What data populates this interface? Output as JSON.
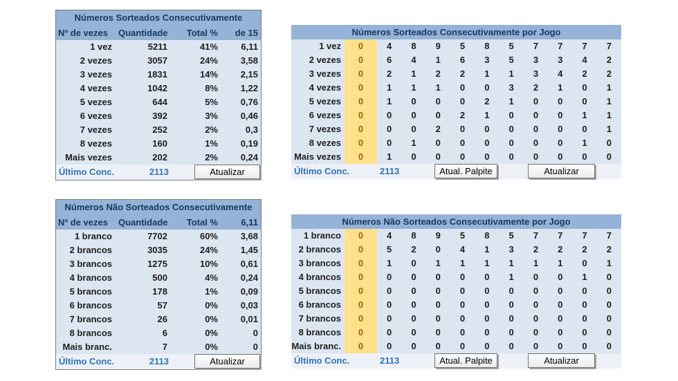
{
  "colors": {
    "header_blue": "#95B3D7",
    "body_blue": "#DCE6F1",
    "highlight_yellow": "#FFE18C",
    "highlight_text": "#9C6500",
    "footer_bg": "#EDF1F7",
    "link_blue": "#2E74B5",
    "title_text": "#17375E"
  },
  "tables": {
    "top_left": {
      "title": "Números Sorteados Consecutivamente",
      "columns": [
        "Nº de vezes",
        "Quantidade",
        "Total %",
        "de 15"
      ],
      "rows": [
        [
          "1 vez",
          "5211",
          "41%",
          "6,11"
        ],
        [
          "2 vezes",
          "3057",
          "24%",
          "3,58"
        ],
        [
          "3 vezes",
          "1831",
          "14%",
          "2,15"
        ],
        [
          "4 vezes",
          "1042",
          "8%",
          "1,22"
        ],
        [
          "5 vezes",
          "644",
          "5%",
          "0,76"
        ],
        [
          "6 vezes",
          "392",
          "3%",
          "0,46"
        ],
        [
          "7 vezes",
          "252",
          "2%",
          "0,3"
        ],
        [
          "8 vezes",
          "160",
          "1%",
          "0,19"
        ],
        [
          "Mais vezes",
          "202",
          "2%",
          "0,24"
        ]
      ],
      "footer": {
        "label": "Último Conc.",
        "value": "2113",
        "buttons": [
          "Atualizar"
        ]
      }
    },
    "top_right": {
      "title": "Números Sorteados Consecutivamente por Jogo",
      "rows": [
        {
          "label": "1 vez",
          "palpite": "0",
          "values": [
            "4",
            "8",
            "9",
            "5",
            "8",
            "5",
            "7",
            "7",
            "7",
            "7"
          ]
        },
        {
          "label": "2 vezes",
          "palpite": "0",
          "values": [
            "6",
            "4",
            "1",
            "6",
            "3",
            "5",
            "3",
            "3",
            "4",
            "2"
          ]
        },
        {
          "label": "3 vezes",
          "palpite": "0",
          "values": [
            "2",
            "1",
            "2",
            "2",
            "1",
            "1",
            "3",
            "4",
            "2",
            "2"
          ]
        },
        {
          "label": "4 vezes",
          "palpite": "0",
          "values": [
            "1",
            "1",
            "1",
            "0",
            "0",
            "3",
            "2",
            "1",
            "0",
            "1"
          ]
        },
        {
          "label": "5 vezes",
          "palpite": "0",
          "values": [
            "1",
            "0",
            "0",
            "0",
            "2",
            "1",
            "0",
            "0",
            "0",
            "1"
          ]
        },
        {
          "label": "6 vezes",
          "palpite": "0",
          "values": [
            "0",
            "0",
            "0",
            "2",
            "1",
            "0",
            "0",
            "0",
            "1",
            "1"
          ]
        },
        {
          "label": "7 vezes",
          "palpite": "0",
          "values": [
            "0",
            "0",
            "2",
            "0",
            "0",
            "0",
            "0",
            "0",
            "0",
            "1"
          ]
        },
        {
          "label": "8 vezes",
          "palpite": "0",
          "values": [
            "0",
            "1",
            "0",
            "0",
            "0",
            "0",
            "0",
            "0",
            "1",
            "0"
          ]
        },
        {
          "label": "Mais vezes",
          "palpite": "0",
          "values": [
            "1",
            "0",
            "0",
            "0",
            "0",
            "0",
            "0",
            "0",
            "0",
            "0"
          ]
        }
      ],
      "footer": {
        "label": "Último Conc.",
        "value": "2113",
        "buttons": [
          "Atual. Palpite",
          "Atualizar"
        ]
      }
    },
    "bottom_left": {
      "title": "Números Não Sorteados Consecutivamente",
      "columns": [
        "Nº de vezes",
        "Quantidade",
        "Total %",
        "6,11"
      ],
      "rows": [
        [
          "1 branco",
          "7702",
          "60%",
          "3,68"
        ],
        [
          "2 brancos",
          "3035",
          "24%",
          "1,45"
        ],
        [
          "3 brancos",
          "1275",
          "10%",
          "0,61"
        ],
        [
          "4 brancos",
          "500",
          "4%",
          "0,24"
        ],
        [
          "5 brancos",
          "178",
          "1%",
          "0,09"
        ],
        [
          "6 brancos",
          "57",
          "0%",
          "0,03"
        ],
        [
          "7 brancos",
          "26",
          "0%",
          "0,01"
        ],
        [
          "8 brancos",
          "6",
          "0%",
          "0"
        ],
        [
          "Mais branc.",
          "7",
          "0%",
          "0"
        ]
      ],
      "footer": {
        "label": "Último Conc.",
        "value": "2113",
        "buttons": [
          "Atualizar"
        ]
      }
    },
    "bottom_right": {
      "title": "Números Não Sorteados Consecutivamente por Jogo",
      "rows": [
        {
          "label": "1 branco",
          "palpite": "0",
          "values": [
            "4",
            "8",
            "9",
            "5",
            "8",
            "5",
            "7",
            "7",
            "7",
            "7"
          ]
        },
        {
          "label": "2 brancos",
          "palpite": "0",
          "values": [
            "5",
            "2",
            "0",
            "4",
            "1",
            "3",
            "2",
            "2",
            "2",
            "2"
          ]
        },
        {
          "label": "3 brancos",
          "palpite": "0",
          "values": [
            "1",
            "0",
            "1",
            "1",
            "1",
            "1",
            "1",
            "1",
            "0",
            "1"
          ]
        },
        {
          "label": "4 brancos",
          "palpite": "0",
          "values": [
            "0",
            "0",
            "0",
            "0",
            "0",
            "1",
            "0",
            "0",
            "1",
            "0"
          ]
        },
        {
          "label": "5 brancos",
          "palpite": "0",
          "values": [
            "0",
            "0",
            "0",
            "0",
            "0",
            "0",
            "0",
            "0",
            "0",
            "0"
          ]
        },
        {
          "label": "6 brancos",
          "palpite": "0",
          "values": [
            "0",
            "0",
            "0",
            "0",
            "0",
            "0",
            "0",
            "0",
            "0",
            "0"
          ]
        },
        {
          "label": "7 brancos",
          "palpite": "0",
          "values": [
            "0",
            "0",
            "0",
            "0",
            "0",
            "0",
            "0",
            "0",
            "0",
            "0"
          ]
        },
        {
          "label": "8 brancos",
          "palpite": "0",
          "values": [
            "0",
            "0",
            "0",
            "0",
            "0",
            "0",
            "0",
            "0",
            "0",
            "0"
          ]
        },
        {
          "label": "Mais branc.",
          "palpite": "0",
          "values": [
            "0",
            "0",
            "0",
            "0",
            "0",
            "0",
            "0",
            "0",
            "0",
            "0"
          ]
        }
      ],
      "footer": {
        "label": "Último Conc.",
        "value": "2113",
        "buttons": [
          "Atual. Palpite",
          "Atualizar"
        ]
      }
    }
  }
}
